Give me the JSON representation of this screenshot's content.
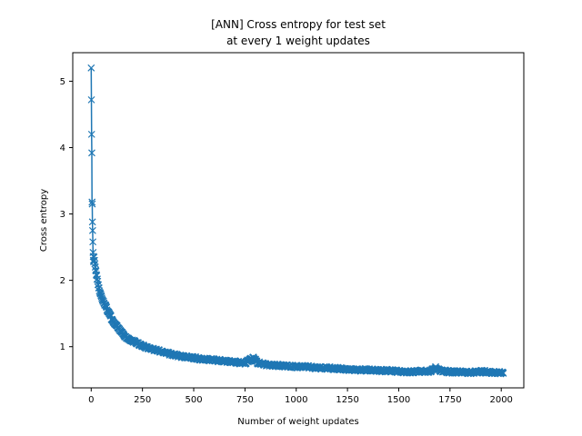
{
  "chart_data": {
    "type": "line",
    "title_lines": [
      "[ANN] Cross entropy for test set",
      "at every 1 weight updates"
    ],
    "xlabel": "Number of weight updates",
    "ylabel": "Cross entropy",
    "xlim": [
      -90,
      2110
    ],
    "ylim": [
      0.38,
      5.43
    ],
    "xticks": [
      0,
      250,
      500,
      750,
      1000,
      1250,
      1500,
      1750,
      2000
    ],
    "yticks": [
      1,
      2,
      3,
      4,
      5
    ],
    "grid": false,
    "legend": "none",
    "marker": "x",
    "color": "#1f77b4",
    "series": [
      {
        "x": [
          0,
          1,
          2,
          3,
          4,
          5,
          6,
          7,
          8,
          9,
          10,
          11,
          12,
          14,
          16,
          18,
          20,
          25,
          30,
          35,
          40,
          50,
          60,
          75,
          90,
          100,
          125,
          150,
          175,
          200,
          250,
          300,
          350,
          400,
          450,
          500,
          550,
          600,
          650,
          700,
          750,
          770,
          790,
          810,
          850,
          900,
          950,
          1000,
          1050,
          1100,
          1150,
          1200,
          1250,
          1300,
          1350,
          1400,
          1450,
          1500,
          1550,
          1600,
          1650,
          1680,
          1700,
          1750,
          1800,
          1850,
          1900,
          1950,
          2000,
          2010
        ],
        "y": [
          5.2,
          4.72,
          4.2,
          3.92,
          3.18,
          3.15,
          2.88,
          2.75,
          2.58,
          2.42,
          2.36,
          2.3,
          2.28,
          2.35,
          2.3,
          2.25,
          2.2,
          2.1,
          2.0,
          1.92,
          1.85,
          1.75,
          1.68,
          1.58,
          1.48,
          1.42,
          1.3,
          1.2,
          1.14,
          1.09,
          1.01,
          0.96,
          0.92,
          0.88,
          0.85,
          0.83,
          0.81,
          0.8,
          0.78,
          0.77,
          0.75,
          0.8,
          0.84,
          0.76,
          0.73,
          0.72,
          0.71,
          0.7,
          0.7,
          0.68,
          0.68,
          0.67,
          0.66,
          0.65,
          0.65,
          0.64,
          0.64,
          0.63,
          0.62,
          0.63,
          0.63,
          0.68,
          0.64,
          0.62,
          0.62,
          0.61,
          0.63,
          0.61,
          0.61,
          0.6
        ]
      }
    ]
  }
}
